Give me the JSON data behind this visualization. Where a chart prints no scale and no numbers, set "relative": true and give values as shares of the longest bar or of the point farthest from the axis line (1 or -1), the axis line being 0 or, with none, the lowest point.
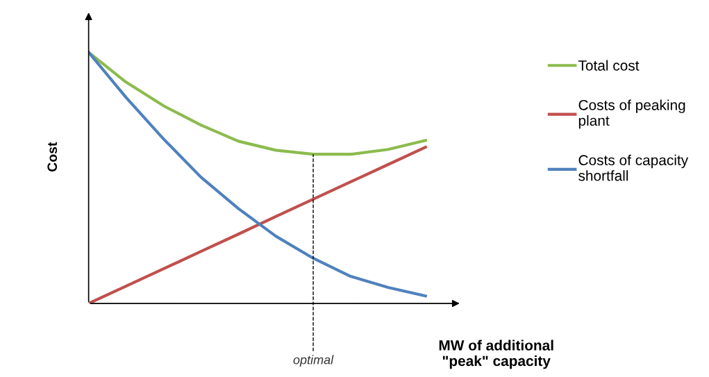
{
  "chart_data": {
    "type": "line",
    "relative": true,
    "ylabel": "Cost",
    "xlabel": "MW of additional\n\"peak\" capacity",
    "categories": [
      null,
      null,
      null,
      null,
      null,
      null,
      null,
      null,
      null,
      null
    ],
    "series": [
      {
        "name": "Total cost",
        "color": "#8cbb4e",
        "values": [
          1.0,
          0.881,
          0.787,
          0.71,
          0.646,
          0.61,
          0.594,
          0.594,
          0.613,
          0.649
        ]
      },
      {
        "name": "Costs of peaking\nplant",
        "color": "#c0504d",
        "values": [
          0.0,
          0.069,
          0.138,
          0.207,
          0.276,
          0.346,
          0.415,
          0.484,
          0.553,
          0.622
        ]
      },
      {
        "name": "Costs of capacity\nshortfall",
        "color": "#4f81bd",
        "values": [
          1.0,
          0.82,
          0.655,
          0.503,
          0.378,
          0.268,
          0.18,
          0.108,
          0.064,
          0.03
        ]
      }
    ],
    "annotations": [
      "optimal"
    ],
    "legend": "right",
    "grid": false
  }
}
